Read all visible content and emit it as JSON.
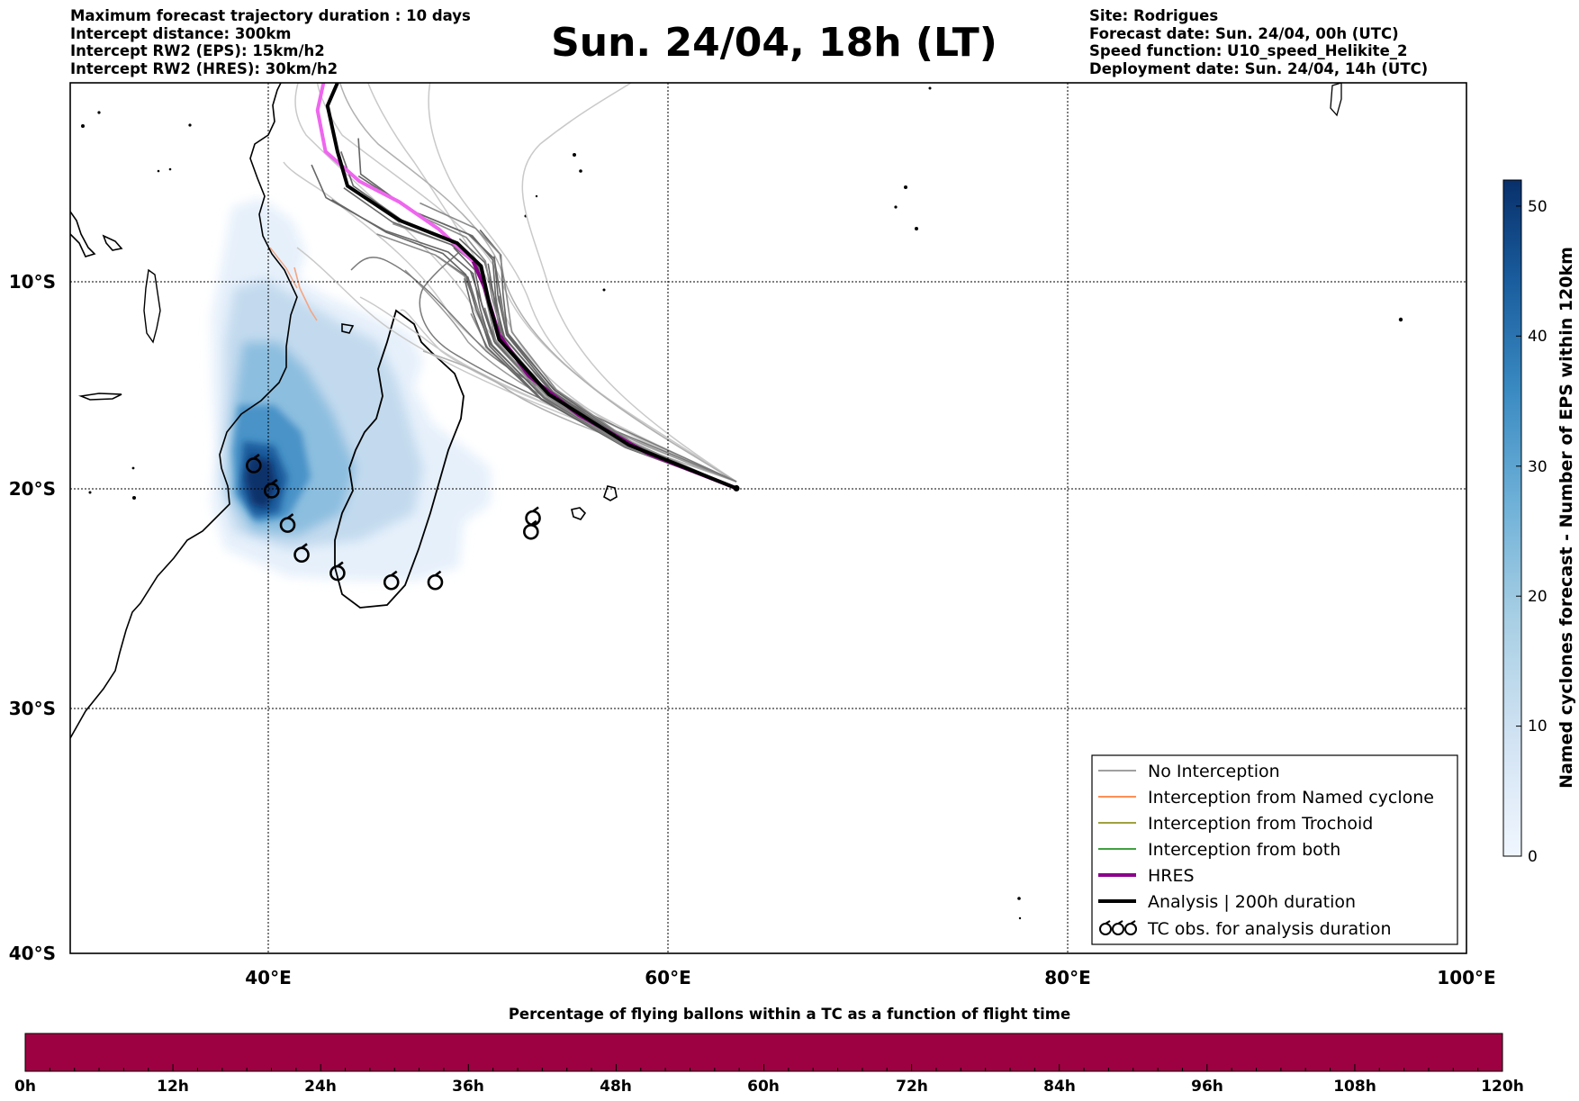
{
  "header": {
    "left": [
      "Maximum forecast trajectory duration : 10 days",
      "Intercept distance: 300km",
      "Intercept RW2 (EPS):  15km/h2",
      "Intercept RW2 (HRES): 30km/h2"
    ],
    "title": "Sun. 24/04, 18h (LT)",
    "right": [
      "Site: Rodrigues",
      "Forecast date: Sun. 24/04, 00h (UTC)",
      "Speed function: U10_speed_Helikite_2",
      "Deployment date: Sun. 24/04, 14h (UTC)"
    ]
  },
  "map": {
    "lon_range": [
      30,
      100
    ],
    "lat_range": [
      -40,
      -2
    ],
    "lon_ticks": [
      "40°E",
      "60°E",
      "80°E",
      "100°E"
    ],
    "lat_ticks": [
      "10°S",
      "20°S",
      "30°S",
      "40°S"
    ],
    "launch_site": {
      "lon": 63.4,
      "lat": -19.7
    },
    "hres_track": [
      [
        63.4,
        -19.7
      ],
      [
        59,
        -18.2
      ],
      [
        55.5,
        -16.5
      ],
      [
        53,
        -14.8
      ],
      [
        51.5,
        -13
      ],
      [
        50.8,
        -11
      ],
      [
        50.2,
        -9.8
      ],
      [
        48.5,
        -8.4
      ],
      [
        46.5,
        -7.2
      ],
      [
        44.5,
        -6.3
      ],
      [
        42.8,
        -5
      ],
      [
        42.4,
        -3.2
      ],
      [
        42.7,
        -2
      ]
    ],
    "analysis_track": [
      [
        63.4,
        -19.7
      ],
      [
        58,
        -17.8
      ],
      [
        54,
        -15.6
      ],
      [
        51.5,
        -13.2
      ],
      [
        51,
        -11.6
      ],
      [
        50.6,
        -10
      ],
      [
        49.4,
        -9
      ],
      [
        46.5,
        -8
      ],
      [
        43.9,
        -6.5
      ],
      [
        43.4,
        -5
      ],
      [
        42.9,
        -3
      ],
      [
        43.4,
        -2
      ]
    ],
    "tc_observations": [
      [
        39.2,
        -18.7
      ],
      [
        40.1,
        -19.8
      ],
      [
        40.9,
        -21.3
      ],
      [
        41.6,
        -22.6
      ],
      [
        43.4,
        -23.4
      ],
      [
        46.1,
        -23.8
      ],
      [
        48.3,
        -23.8
      ],
      [
        53.2,
        -21
      ],
      [
        53.1,
        -21.6
      ]
    ]
  },
  "legend": {
    "items": [
      {
        "label": "No Interception",
        "color": "#808080"
      },
      {
        "label": "Interception from Named cyclone",
        "color": "#ff6a1f"
      },
      {
        "label": "Interception from Trochoid",
        "color": "#808000"
      },
      {
        "label": "Interception from both",
        "color": "#008000"
      },
      {
        "label": "HRES",
        "color": "#8b008b"
      },
      {
        "label": "Analysis | 200h duration",
        "color": "#000000"
      },
      {
        "label": "TC obs. for analysis duration",
        "color": "#000000"
      }
    ]
  },
  "colorbar": {
    "label": "Named cyclones forecast - Number of EPS within 120km",
    "range": [
      0,
      52
    ],
    "ticks": [
      "0",
      "10",
      "20",
      "30",
      "40",
      "50"
    ],
    "colors": [
      "#f0f6fe",
      "#d2e3f3",
      "#a8cfe4",
      "#6fb1d8",
      "#3a8ac2",
      "#1a5d9e",
      "#08306b"
    ]
  },
  "flight_bar": {
    "title": "Percentage of flying ballons within a TC as a function of flight time",
    "color": "#9e0142",
    "ticks": [
      "0h",
      "12h",
      "24h",
      "36h",
      "48h",
      "60h",
      "72h",
      "84h",
      "96h",
      "108h",
      "120h"
    ]
  }
}
